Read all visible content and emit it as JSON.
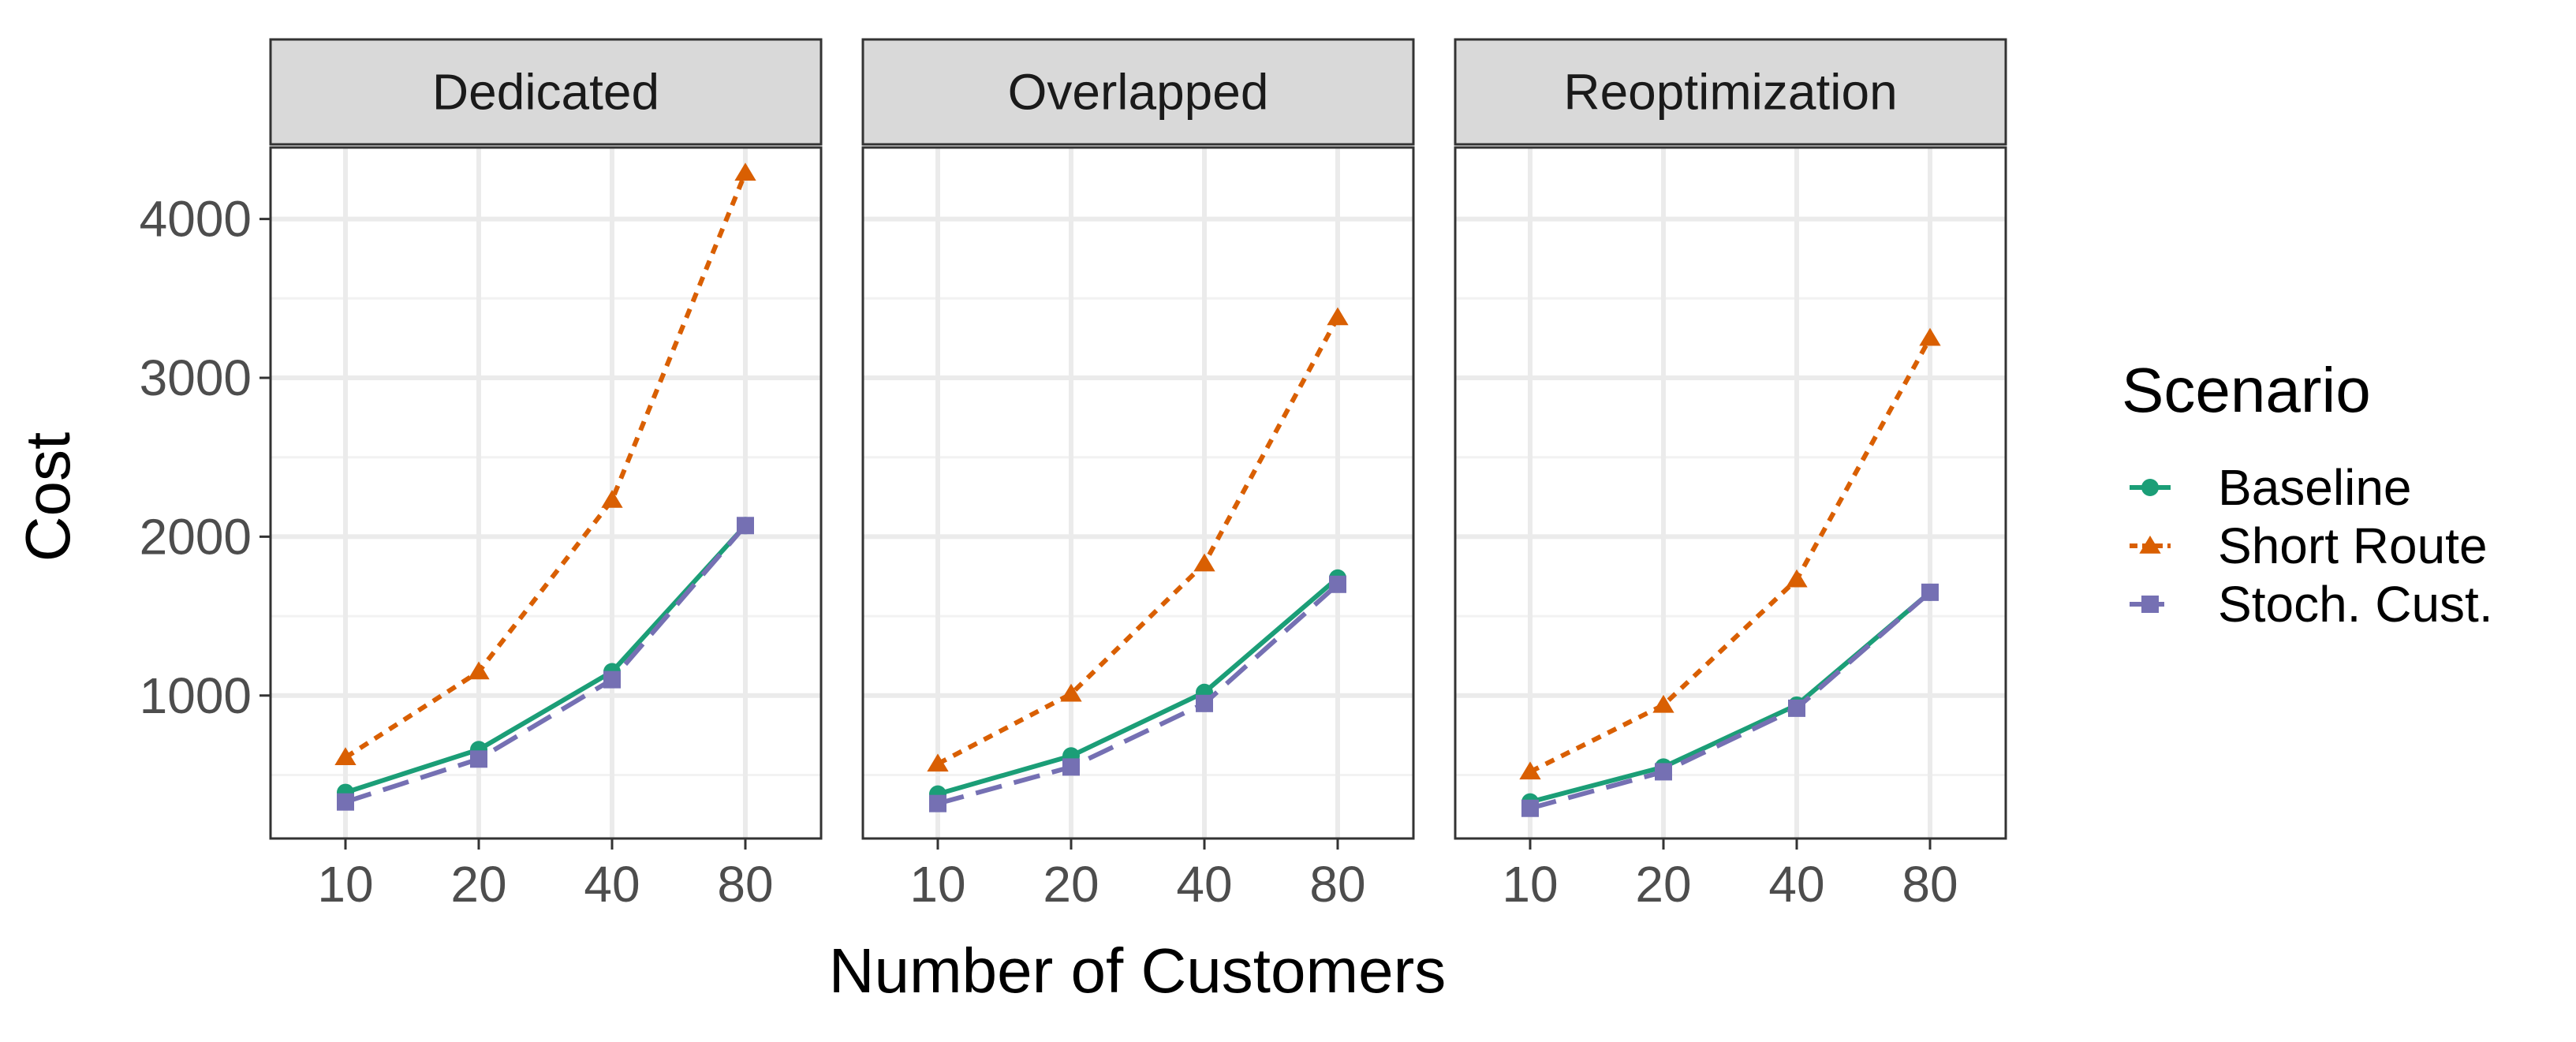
{
  "chart_data": {
    "type": "line",
    "facet_by": "Solution approach",
    "panels": [
      {
        "title": "Dedicated",
        "series": [
          {
            "name": "Baseline",
            "values": [
              390,
              660,
              1150,
              2070
            ]
          },
          {
            "name": "Short Route",
            "values": [
              610,
              1150,
              2230,
              4290
            ]
          },
          {
            "name": "Stoch. Cust.",
            "values": [
              330,
              600,
              1100,
              2070
            ]
          }
        ]
      },
      {
        "title": "Overlapped",
        "series": [
          {
            "name": "Baseline",
            "values": [
              380,
              620,
              1020,
              1740
            ]
          },
          {
            "name": "Short Route",
            "values": [
              570,
              1010,
              1830,
              3380
            ]
          },
          {
            "name": "Stoch. Cust.",
            "values": [
              320,
              550,
              950,
              1700
            ]
          }
        ]
      },
      {
        "title": "Reoptimization",
        "series": [
          {
            "name": "Baseline",
            "values": [
              330,
              550,
              940,
              1650
            ]
          },
          {
            "name": "Short Route",
            "values": [
              520,
              940,
              1730,
              3250
            ]
          },
          {
            "name": "Stoch. Cust.",
            "values": [
              290,
              520,
              920,
              1650
            ]
          }
        ]
      }
    ],
    "categories": [
      "10",
      "20",
      "40",
      "80"
    ],
    "xlabel": "Number of Customers",
    "ylabel": "Cost",
    "y_ticks": [
      1000,
      2000,
      3000,
      4000
    ],
    "y_tick_labels": [
      "1000",
      "2000",
      "3000",
      "4000"
    ],
    "ylim": [
      100,
      4450
    ],
    "grid": true,
    "legend": {
      "title": "Scenario",
      "position": "right",
      "entries": [
        "Baseline",
        "Short Route",
        "Stoch. Cust."
      ]
    },
    "series_styles": [
      {
        "name": "Baseline",
        "color": "#1b9e77",
        "marker": "circle",
        "line": "solid"
      },
      {
        "name": "Short Route",
        "color": "#d95f02",
        "marker": "triangle",
        "line": "dotted"
      },
      {
        "name": "Stoch. Cust.",
        "color": "#7570b3",
        "marker": "square",
        "line": "dashed"
      }
    ],
    "theme": {
      "strip_fill": "#d9d9d9",
      "grid_major": "#ebebeb",
      "grid_minor": "#f2f2f2",
      "panel_border": "#333333"
    }
  }
}
